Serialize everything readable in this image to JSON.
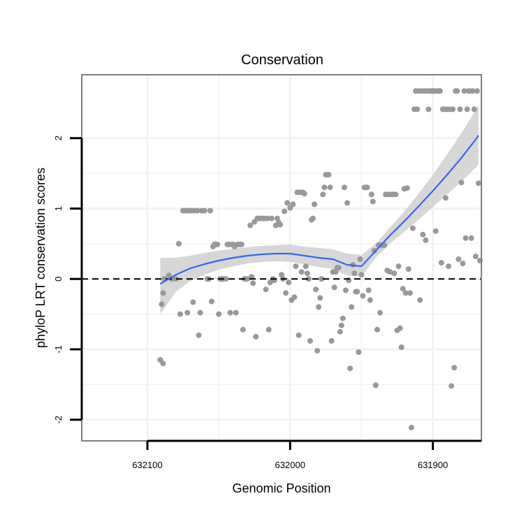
{
  "chart_data": {
    "type": "scatter",
    "title": "Conservation",
    "xlabel": "Genomic Position",
    "ylabel": "phyloP LRT conservation scores",
    "x_reversed": true,
    "xlim": [
      632146,
      631866
    ],
    "ylim": [
      -2.3,
      2.9
    ],
    "xticks": [
      632100,
      632000,
      631900
    ],
    "yticks": [
      -2,
      -1,
      0,
      1,
      2
    ],
    "reference_line": {
      "y": 0,
      "style": "dashed"
    },
    "grid": true,
    "legend": "none",
    "colors": {
      "points": "#999999",
      "smooth": "#3366ff",
      "ribbon": "#d0d0d0",
      "frame": "#7f7f7f",
      "grid": "#f2f2f2"
    },
    "points": [
      [
        632091,
        -1.15
      ],
      [
        632089,
        -1.2
      ],
      [
        632090,
        -0.36
      ],
      [
        632089,
        -0.2
      ],
      [
        632088,
        0.0
      ],
      [
        632085,
        0.05
      ],
      [
        632083,
        0.0
      ],
      [
        632080,
        0.0
      ],
      [
        632078,
        0.5
      ],
      [
        632077,
        -0.5
      ],
      [
        632075,
        0.97
      ],
      [
        632073,
        0.97
      ],
      [
        632072,
        -0.48
      ],
      [
        632071,
        0.97
      ],
      [
        632069,
        0.97
      ],
      [
        632068,
        -0.33
      ],
      [
        632067,
        0.97
      ],
      [
        632065,
        0.97
      ],
      [
        632064,
        -0.8
      ],
      [
        632063,
        -0.48
      ],
      [
        632062,
        0.97
      ],
      [
        632060,
        0.97
      ],
      [
        632058,
        0.0
      ],
      [
        632057,
        0.0
      ],
      [
        632056,
        0.97
      ],
      [
        632055,
        -0.32
      ],
      [
        632054,
        0.46
      ],
      [
        632053,
        0.49
      ],
      [
        632052,
        0.49
      ],
      [
        632051,
        0.49
      ],
      [
        632050,
        -0.5
      ],
      [
        632049,
        0.0
      ],
      [
        632048,
        0.0
      ],
      [
        632047,
        0.0
      ],
      [
        632045,
        0.0
      ],
      [
        632044,
        0.49
      ],
      [
        632043,
        0.49
      ],
      [
        632042,
        -0.48
      ],
      [
        632041,
        0.49
      ],
      [
        632040,
        0.49
      ],
      [
        632039,
        0.46
      ],
      [
        632038,
        -0.48
      ],
      [
        632037,
        0.49
      ],
      [
        632036,
        0.49
      ],
      [
        632035,
        0.49
      ],
      [
        632034,
        0.49
      ],
      [
        632033,
        -0.72
      ],
      [
        632032,
        0.0
      ],
      [
        632031,
        0.0
      ],
      [
        632030,
        0.0
      ],
      [
        632028,
        0.76
      ],
      [
        632027,
        0.03
      ],
      [
        632026,
        -0.06
      ],
      [
        632025,
        0.81
      ],
      [
        632024,
        -0.82
      ],
      [
        632023,
        0.86
      ],
      [
        632022,
        0.86
      ],
      [
        632021,
        0.86
      ],
      [
        632019,
        0.86
      ],
      [
        632018,
        0.86
      ],
      [
        632017,
        -0.15
      ],
      [
        632016,
        0.86
      ],
      [
        632015,
        -0.72
      ],
      [
        632014,
        -0.05
      ],
      [
        632013,
        0.86
      ],
      [
        632012,
        0.0
      ],
      [
        632011,
        -0.02
      ],
      [
        632010,
        0.76
      ],
      [
        632009,
        0.86
      ],
      [
        632008,
        0.8
      ],
      [
        632007,
        0.77
      ],
      [
        632006,
        0.06
      ],
      [
        632005,
        0.0
      ],
      [
        632004,
        0.96
      ],
      [
        632003,
        -0.2
      ],
      [
        632002,
        1.08
      ],
      [
        632001,
        -0.05
      ],
      [
        632000,
        1.01
      ],
      [
        631999,
        -0.3
      ],
      [
        631998,
        1.06
      ],
      [
        631997,
        -0.26
      ],
      [
        631996,
        0.18
      ],
      [
        631995,
        1.23
      ],
      [
        631994,
        -0.8
      ],
      [
        631993,
        1.23
      ],
      [
        631992,
        0.1
      ],
      [
        631991,
        1.23
      ],
      [
        631990,
        1.21
      ],
      [
        631989,
        0.18
      ],
      [
        631988,
        0.08
      ],
      [
        631987,
        0.0
      ],
      [
        631986,
        -0.88
      ],
      [
        631985,
        0.84
      ],
      [
        631984,
        0.86
      ],
      [
        631983,
        1.06
      ],
      [
        631982,
        -0.15
      ],
      [
        631981,
        -1.02
      ],
      [
        631980,
        -0.4
      ],
      [
        631979,
        -0.27
      ],
      [
        631978,
        0.0
      ],
      [
        631977,
        1.2
      ],
      [
        631976,
        1.3
      ],
      [
        631975,
        1.48
      ],
      [
        631974,
        1.48
      ],
      [
        631973,
        1.48
      ],
      [
        631972,
        1.3
      ],
      [
        631971,
        -0.88
      ],
      [
        631970,
        0.1
      ],
      [
        631969,
        -0.12
      ],
      [
        631968,
        0.1
      ],
      [
        631967,
        0.16
      ],
      [
        631966,
        0.16
      ],
      [
        631965,
        -0.75
      ],
      [
        631964,
        -0.66
      ],
      [
        631963,
        -0.56
      ],
      [
        631962,
        1.3
      ],
      [
        631961,
        -0.16
      ],
      [
        631960,
        1.08
      ],
      [
        631959,
        -0.02
      ],
      [
        631958,
        -1.27
      ],
      [
        631957,
        -0.4
      ],
      [
        631956,
        0.2
      ],
      [
        631955,
        0.08
      ],
      [
        631954,
        -0.18
      ],
      [
        631953,
        -0.18
      ],
      [
        631952,
        -1.04
      ],
      [
        631951,
        0.28
      ],
      [
        631950,
        0.06
      ],
      [
        631949,
        -0.24
      ],
      [
        631948,
        1.3
      ],
      [
        631947,
        1.3
      ],
      [
        631946,
        1.3
      ],
      [
        631945,
        -0.16
      ],
      [
        631944,
        -0.3
      ],
      [
        631943,
        1.2
      ],
      [
        631942,
        1.1
      ],
      [
        631941,
        0.4
      ],
      [
        631940,
        -1.51
      ],
      [
        631939,
        -0.72
      ],
      [
        631938,
        0.48
      ],
      [
        631937,
        -0.48
      ],
      [
        631936,
        0.48
      ],
      [
        631935,
        0.48
      ],
      [
        631934,
        0.48
      ],
      [
        631933,
        1.2
      ],
      [
        631932,
        0.12
      ],
      [
        631931,
        1.2
      ],
      [
        631930,
        0.1
      ],
      [
        631929,
        1.2
      ],
      [
        631928,
        1.2
      ],
      [
        631927,
        0.08
      ],
      [
        631926,
        1.2
      ],
      [
        631925,
        -0.73
      ],
      [
        631924,
        0.18
      ],
      [
        631923,
        -0.7
      ],
      [
        631922,
        -0.97
      ],
      [
        631921,
        -0.14
      ],
      [
        631920,
        1.28
      ],
      [
        631919,
        -0.2
      ],
      [
        631918,
        1.29
      ],
      [
        631917,
        0.14
      ],
      [
        631916,
        -0.2
      ],
      [
        631915,
        -2.11
      ],
      [
        631914,
        0.72
      ],
      [
        631913,
        2.41
      ],
      [
        631912,
        2.67
      ],
      [
        631911,
        2.41
      ],
      [
        631910,
        2.67
      ],
      [
        631909,
        -0.3
      ],
      [
        631908,
        2.67
      ],
      [
        631907,
        0.63
      ],
      [
        631906,
        2.67
      ],
      [
        631905,
        0.55
      ],
      [
        631904,
        2.67
      ],
      [
        631903,
        2.41
      ],
      [
        631902,
        2.67
      ],
      [
        631901,
        2.67
      ],
      [
        631900,
        2.67
      ],
      [
        631899,
        2.67
      ],
      [
        631898,
        0.68
      ],
      [
        631897,
        2.67
      ],
      [
        631896,
        2.67
      ],
      [
        631895,
        2.67
      ],
      [
        631894,
        0.23
      ],
      [
        631893,
        2.41
      ],
      [
        631892,
        2.41
      ],
      [
        631891,
        1.15
      ],
      [
        631890,
        2.41
      ],
      [
        631889,
        0.18
      ],
      [
        631888,
        2.41
      ],
      [
        631887,
        -1.52
      ],
      [
        631886,
        2.41
      ],
      [
        631885,
        -1.26
      ],
      [
        631884,
        2.67
      ],
      [
        631883,
        2.67
      ],
      [
        631882,
        0.28
      ],
      [
        631881,
        2.41
      ],
      [
        631880,
        1.37
      ],
      [
        631879,
        0.22
      ],
      [
        631878,
        2.67
      ],
      [
        631877,
        0.58
      ],
      [
        631876,
        2.41
      ],
      [
        631875,
        2.67
      ],
      [
        631874,
        2.67
      ],
      [
        631873,
        0.58
      ],
      [
        631872,
        2.67
      ],
      [
        631871,
        2.41
      ],
      [
        631870,
        0.32
      ],
      [
        631869,
        2.67
      ],
      [
        631868,
        1.36
      ],
      [
        631867,
        0.26
      ]
    ],
    "smooth": {
      "x": [
        632091,
        632080,
        632070,
        632060,
        632050,
        632040,
        632030,
        632020,
        632010,
        632000,
        631990,
        631980,
        631970,
        631960,
        631950,
        631940,
        631930,
        631920,
        631910,
        631900,
        631890,
        631880,
        631870,
        631868
      ],
      "y": [
        -0.07,
        0.06,
        0.15,
        0.21,
        0.26,
        0.3,
        0.33,
        0.35,
        0.36,
        0.36,
        0.33,
        0.3,
        0.28,
        0.2,
        0.18,
        0.4,
        0.62,
        0.82,
        1.03,
        1.25,
        1.48,
        1.72,
        1.98,
        2.04
      ],
      "lower": [
        -0.5,
        -0.18,
        -0.03,
        0.06,
        0.13,
        0.18,
        0.22,
        0.24,
        0.25,
        0.24,
        0.21,
        0.17,
        0.14,
        0.05,
        0.03,
        0.3,
        0.5,
        0.67,
        0.84,
        1.02,
        1.2,
        1.38,
        1.58,
        1.63
      ],
      "upper": [
        0.3,
        0.3,
        0.33,
        0.37,
        0.4,
        0.43,
        0.45,
        0.47,
        0.48,
        0.49,
        0.46,
        0.44,
        0.42,
        0.36,
        0.34,
        0.5,
        0.73,
        0.96,
        1.21,
        1.48,
        1.77,
        2.07,
        2.4,
        2.46
      ]
    }
  }
}
